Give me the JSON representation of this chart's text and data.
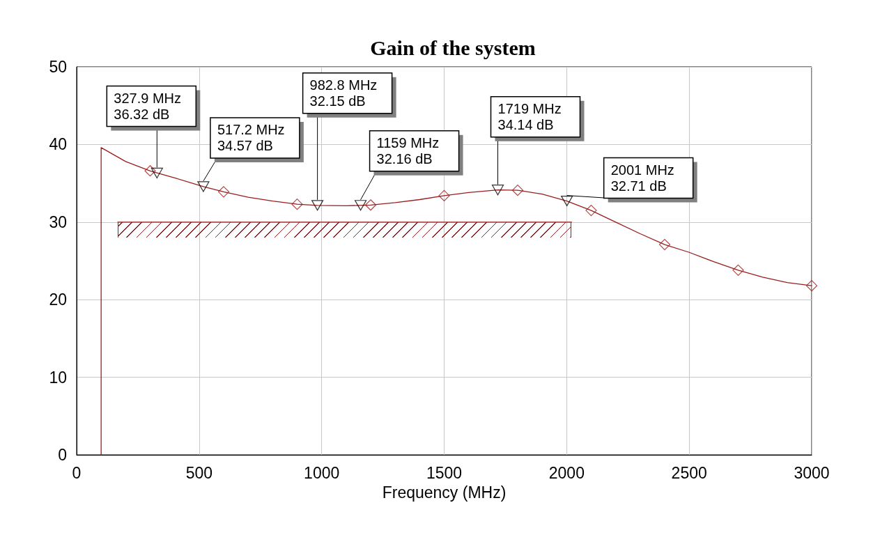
{
  "chart_data": {
    "type": "line",
    "title": "Gain of the system",
    "xlabel": "Frequency (MHz)",
    "xlim": [
      0,
      3000
    ],
    "xticks": [
      0,
      500,
      1000,
      1500,
      2000,
      2500,
      3000
    ],
    "ylim": [
      0,
      50
    ],
    "yticks": [
      0,
      10,
      20,
      30,
      40,
      50
    ],
    "grid": true,
    "line_style": "solid",
    "series": [
      {
        "color": "#9b1c1c",
        "marker": "none",
        "x": [
          100,
          100,
          200,
          300,
          400,
          517.2,
          600,
          700,
          800,
          900,
          982.8,
          1100,
          1200,
          1300,
          1400,
          1500,
          1600,
          1719,
          1800,
          1900,
          2001,
          2100,
          2200,
          2300,
          2400,
          2500,
          2600,
          2700,
          2800,
          2900,
          3000
        ],
        "values": [
          0,
          39.6,
          37.8,
          36.6,
          35.7,
          34.57,
          33.9,
          33.2,
          32.7,
          32.3,
          32.15,
          32.1,
          32.2,
          32.5,
          32.9,
          33.4,
          33.8,
          34.14,
          34.1,
          33.6,
          32.71,
          31.5,
          30.0,
          28.5,
          27.1,
          26.1,
          24.9,
          23.8,
          22.9,
          22.2,
          21.8
        ]
      },
      {
        "type": "scatter",
        "color": "#9b1c1c",
        "marker": "diamond",
        "x": [
          300,
          600,
          900,
          1200,
          1500,
          1800,
          2100,
          2400,
          2700,
          3000
        ],
        "values": [
          36.6,
          33.9,
          32.3,
          32.2,
          33.4,
          34.1,
          31.5,
          27.1,
          23.8,
          21.8
        ]
      },
      {
        "type": "scatter",
        "color": "#000000",
        "marker": "triangle",
        "x": [
          327.9,
          517.2,
          982.8,
          1159,
          1719,
          2001
        ],
        "values": [
          36.32,
          34.57,
          32.15,
          32.16,
          34.14,
          32.71
        ]
      },
      {
        "type": "line",
        "color": "#9b1c1c",
        "marker": "none",
        "x": [
          168,
          2020
        ],
        "values": [
          30,
          30
        ]
      }
    ],
    "annotations": [
      {
        "text": "327.9 MHz\n36.32 dB",
        "x": 327.9,
        "y": 36.32
      },
      {
        "text": "517.2 MHz\n34.57 dB",
        "x": 517.2,
        "y": 34.57
      },
      {
        "text": "982.8 MHz\n32.15 dB",
        "x": 982.8,
        "y": 32.15
      },
      {
        "text": "1159 MHz\n32.16 dB",
        "x": 1159,
        "y": 32.16
      },
      {
        "text": "1719 MHz\n34.14 dB",
        "x": 1719,
        "y": 34.14
      },
      {
        "text": "2001 MHz\n32.71 dB",
        "x": 2001,
        "y": 32.71
      }
    ]
  }
}
